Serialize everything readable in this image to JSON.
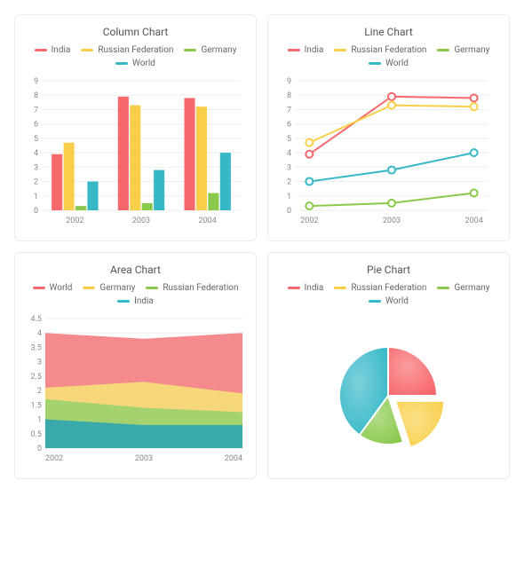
{
  "colors": {
    "india": "#f7686d",
    "russia": "#f9cf4a",
    "germany": "#8bc94d",
    "world": "#36b8c7",
    "grid": "#eeeeee",
    "axis_text": "#888888",
    "title_text": "#555555",
    "legend_text": "#666666",
    "border": "#ececec",
    "area_world": "#f48a8e",
    "area_germany": "#f6d77a",
    "area_russia": "#a3d26e",
    "area_india": "#3aa9a9"
  },
  "typography": {
    "title_fontsize": 12,
    "legend_fontsize": 10,
    "axis_fontsize": 9
  },
  "column_chart": {
    "type": "bar",
    "title": "Column Chart",
    "legend": [
      {
        "label": "India",
        "color_key": "india"
      },
      {
        "label": "Russian Federation",
        "color_key": "russia"
      },
      {
        "label": "Germany",
        "color_key": "germany"
      },
      {
        "label": "World",
        "color_key": "world"
      }
    ],
    "categories": [
      "2002",
      "2003",
      "2004"
    ],
    "series": {
      "india": [
        3.9,
        7.9,
        7.8
      ],
      "russia": [
        4.7,
        7.3,
        7.2
      ],
      "germany": [
        0.3,
        0.5,
        1.2
      ],
      "world": [
        2.0,
        2.8,
        4.0
      ]
    },
    "ylim": [
      0,
      9
    ],
    "ytick_step": 1,
    "bar_width": 0.18,
    "group_gap": 0.28
  },
  "line_chart": {
    "type": "line",
    "title": "Line Chart",
    "legend": [
      {
        "label": "India",
        "color_key": "india"
      },
      {
        "label": "Russian Federation",
        "color_key": "russia"
      },
      {
        "label": "Germany",
        "color_key": "germany"
      },
      {
        "label": "World",
        "color_key": "world"
      }
    ],
    "categories": [
      "2002",
      "2003",
      "2004"
    ],
    "series": {
      "india": [
        3.9,
        7.9,
        7.8
      ],
      "russia": [
        4.7,
        7.3,
        7.2
      ],
      "germany": [
        0.3,
        0.5,
        1.2
      ],
      "world": [
        2.0,
        2.8,
        4.0
      ]
    },
    "ylim": [
      0,
      9
    ],
    "ytick_step": 1,
    "marker_radius": 4,
    "line_width": 2
  },
  "area_chart": {
    "type": "area",
    "title": "Area Chart",
    "legend": [
      {
        "label": "World",
        "color_key": "india"
      },
      {
        "label": "Germany",
        "color_key": "russia"
      },
      {
        "label": "Russian Federation",
        "color_key": "germany"
      },
      {
        "label": "India",
        "color_key": "world"
      }
    ],
    "categories": [
      "2002",
      "2003",
      "2004"
    ],
    "stack_order": [
      "india",
      "russia",
      "germany",
      "world"
    ],
    "stack_colors": {
      "india": "area_india",
      "russia": "area_russia",
      "germany": "area_germany",
      "world": "area_world"
    },
    "cumulative": {
      "india": [
        1.0,
        0.8,
        0.8
      ],
      "russia": [
        1.7,
        1.4,
        1.25
      ],
      "germany": [
        2.1,
        2.3,
        1.9
      ],
      "world": [
        4.0,
        3.8,
        4.0
      ]
    },
    "ylim": [
      0,
      4.5
    ],
    "ytick_step": 0.5
  },
  "pie_chart": {
    "type": "pie",
    "title": "Pie Chart",
    "legend": [
      {
        "label": "India",
        "color_key": "india"
      },
      {
        "label": "Russian Federation",
        "color_key": "russia"
      },
      {
        "label": "Germany",
        "color_key": "germany"
      },
      {
        "label": "World",
        "color_key": "world"
      }
    ],
    "slices": [
      {
        "label": "India",
        "color_key": "india",
        "fraction": 0.25,
        "exploded": false
      },
      {
        "label": "Russian Federation",
        "color_key": "russia",
        "fraction": 0.2,
        "exploded": true
      },
      {
        "label": "Germany",
        "color_key": "germany",
        "fraction": 0.15,
        "exploded": false
      },
      {
        "label": "World",
        "color_key": "world",
        "fraction": 0.4,
        "exploded": false
      }
    ],
    "radius": 55,
    "explode_offset": 10
  }
}
